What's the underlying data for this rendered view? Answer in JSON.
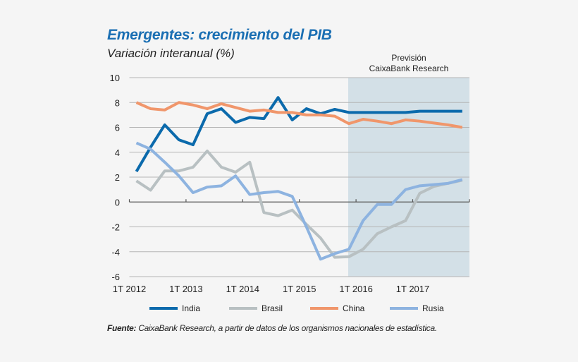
{
  "chart_data": {
    "type": "line",
    "title": "Emergentes: crecimiento del PIB",
    "subtitle": "Variación interanual (%)",
    "forecast_label": [
      "Previsión",
      "CaixaBank Research"
    ],
    "forecast_start": "4T 2015",
    "forecast_shade_color": "#d3e0e7",
    "x": [
      "1T 2012",
      "2T 2012",
      "3T 2012",
      "4T 2012",
      "1T 2013",
      "2T 2013",
      "3T 2013",
      "4T 2013",
      "1T 2014",
      "2T 2014",
      "3T 2014",
      "4T 2014",
      "1T 2015",
      "2T 2015",
      "3T 2015",
      "4T 2015",
      "1T 2016",
      "2T 2016",
      "3T 2016",
      "4T 2016",
      "1T 2017",
      "2T 2017",
      "3T 2017",
      "4T 2017"
    ],
    "xtick_labels": [
      "1T 2012",
      "1T 2013",
      "1T 2014",
      "1T 2015",
      "1T 2016",
      "1T 2017"
    ],
    "yticks": [
      10,
      8,
      6,
      4,
      2,
      0,
      -2,
      -4,
      -6
    ],
    "ylim": [
      -6,
      10
    ],
    "grid": true,
    "legend_position": "bottom",
    "series": [
      {
        "name": "India",
        "color": "#0b6aac",
        "values": [
          2.45,
          4.4,
          6.2,
          5.0,
          4.6,
          7.1,
          7.5,
          6.4,
          6.8,
          6.7,
          8.4,
          6.6,
          7.5,
          7.1,
          7.45,
          7.2,
          7.2,
          7.2,
          7.2,
          7.2,
          7.3,
          7.3,
          7.3,
          7.3
        ]
      },
      {
        "name": "Brasil",
        "color": "#b8c0c2",
        "values": [
          1.7,
          0.95,
          2.5,
          2.5,
          2.8,
          4.1,
          2.8,
          2.4,
          3.2,
          -0.85,
          -1.1,
          -0.65,
          -1.8,
          -2.9,
          -4.45,
          -4.4,
          -3.8,
          -2.55,
          -2.0,
          -1.5,
          0.7,
          1.25,
          1.5,
          1.75
        ]
      },
      {
        "name": "China",
        "color": "#f0966b",
        "values": [
          8.0,
          7.5,
          7.4,
          8.0,
          7.8,
          7.5,
          7.9,
          7.6,
          7.3,
          7.4,
          7.2,
          7.2,
          7.0,
          7.0,
          6.9,
          6.3,
          6.65,
          6.5,
          6.3,
          6.6,
          6.5,
          6.35,
          6.2,
          6.0
        ]
      },
      {
        "name": "Rusia",
        "color": "#8db3e0",
        "values": [
          4.75,
          4.25,
          3.2,
          2.1,
          0.75,
          1.2,
          1.3,
          2.1,
          0.6,
          0.75,
          0.85,
          0.45,
          -2.0,
          -4.6,
          -4.15,
          -3.8,
          -1.5,
          -0.2,
          -0.2,
          1.0,
          1.3,
          1.4,
          1.5,
          1.8
        ]
      }
    ]
  },
  "source": {
    "label": "Fuente:",
    "text": " CaixaBank Research, a partir de datos de los organismos nacionales de estadística."
  }
}
